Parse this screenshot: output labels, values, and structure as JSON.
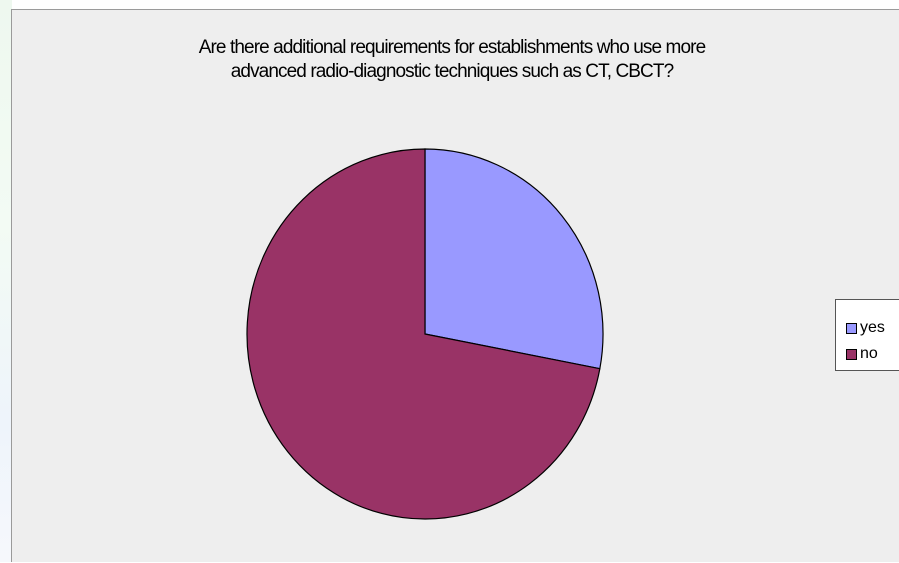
{
  "chart_data": {
    "type": "pie",
    "title_lines": [
      "Are there additional  requirements for establishments who use more",
      "advanced radio-diagnostic techniques such as CT,  CBCT?"
    ],
    "slices": [
      {
        "label": "yes",
        "value": 28,
        "color": "#9999ff"
      },
      {
        "label": "no",
        "value": 72,
        "color": "#993366"
      }
    ],
    "legend_position": "right"
  }
}
